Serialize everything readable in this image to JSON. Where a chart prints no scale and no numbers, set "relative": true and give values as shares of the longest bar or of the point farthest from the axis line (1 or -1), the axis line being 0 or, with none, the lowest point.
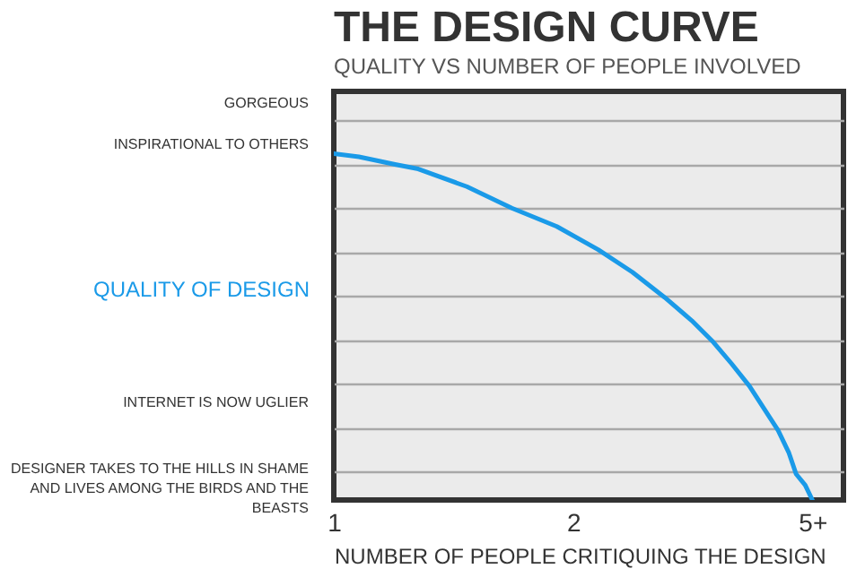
{
  "chart_data": {
    "type": "line",
    "title": "THE DESIGN CURVE",
    "subtitle": "QUALITY VS NUMBER OF PEOPLE INVOLVED",
    "xlabel": "NUMBER OF PEOPLE CRITIQUING THE DESIGN",
    "ylabel": "QUALITY OF DESIGN",
    "annotations": [
      "GORGEOUS",
      "INSPIRATIONAL TO OTHERS",
      "INTERNET IS NOW UGLIER",
      "DESIGNER TAKES TO THE HILLS IN SHAME AND LIVES AMONG THE BIRDS AND THE BEASTS"
    ],
    "x": [
      1,
      1.105,
      1.256,
      1.353,
      1.556,
      1.744,
      1.932,
      2.105,
      2.248,
      2.383,
      2.496,
      2.586,
      2.662,
      2.737,
      2.797,
      2.857,
      2.902,
      2.932,
      2.97,
      3.0
    ],
    "series": [
      {
        "color": "#1a9ae8",
        "values": [
          1,
          0.991,
          0.969,
          0.956,
          0.905,
          0.843,
          0.79,
          0.723,
          0.658,
          0.585,
          0.518,
          0.456,
          0.394,
          0.329,
          0.265,
          0.201,
          0.136,
          0.075,
          0.043,
          0
        ]
      }
    ],
    "relative": true,
    "xlim": [
      1,
      3.13
    ],
    "xticks": [
      1,
      2,
      {
        "value": 3,
        "label": "5+"
      }
    ],
    "grid": "y",
    "legend": false
  }
}
